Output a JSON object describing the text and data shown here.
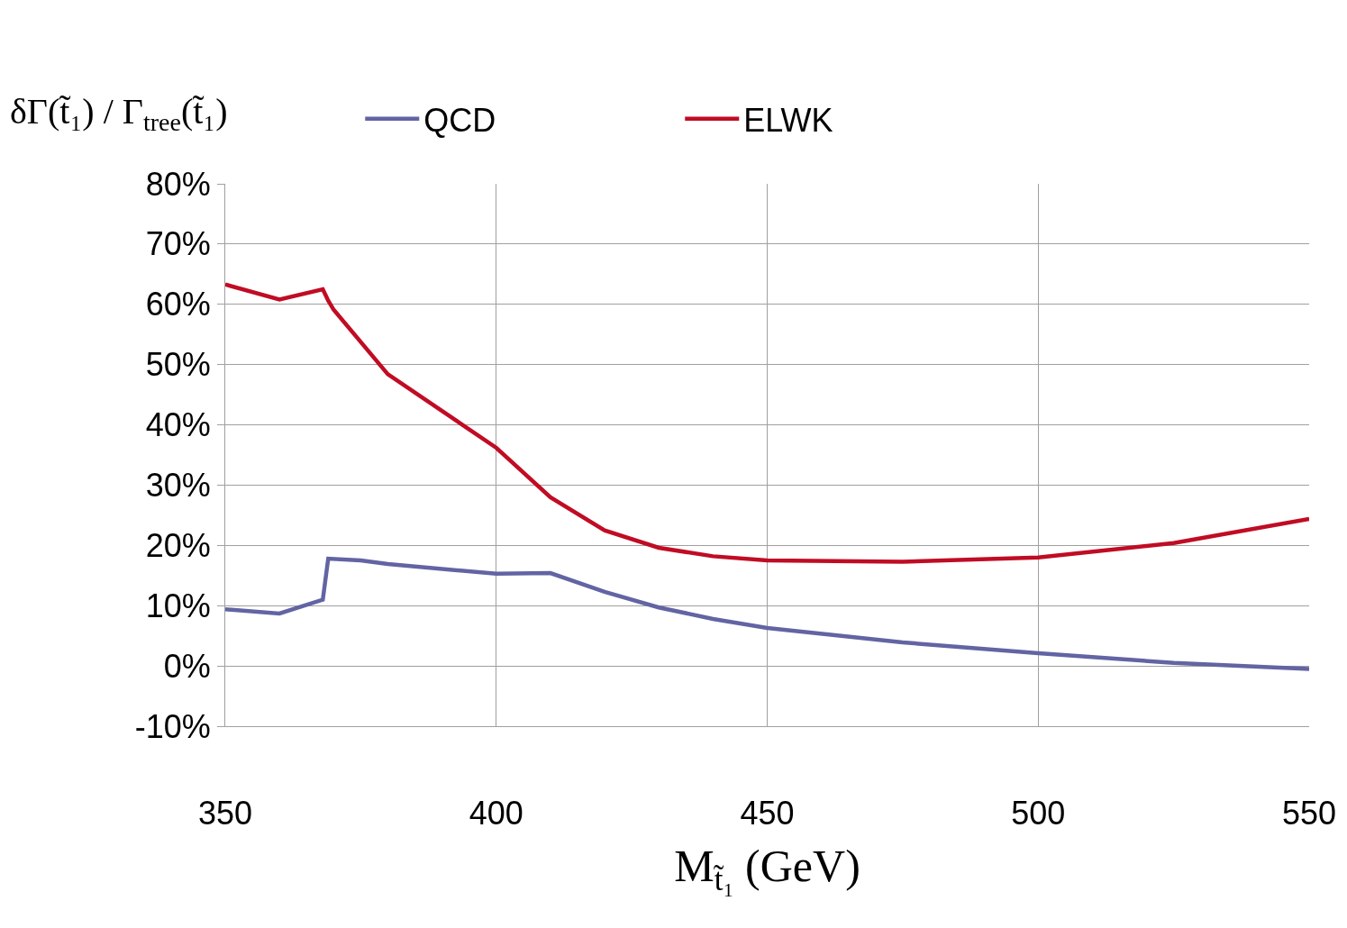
{
  "chart_data": {
    "type": "line",
    "ylabel": "δΓ(t̃₁) / Γ$_{tree}$(t̃₁)",
    "xlabel": "M$_{t̃₁}$ (GeV)",
    "xlim": [
      350,
      550
    ],
    "xticks": [
      350,
      400,
      450,
      500,
      550
    ],
    "ylim": [
      -10,
      80
    ],
    "yticks": [
      {
        "value": -10,
        "label": "-10%"
      },
      {
        "value": 0,
        "label": "0%"
      },
      {
        "value": 10,
        "label": "10%"
      },
      {
        "value": 20,
        "label": "20%"
      },
      {
        "value": 30,
        "label": "30%"
      },
      {
        "value": 40,
        "label": "40%"
      },
      {
        "value": 50,
        "label": "50%"
      },
      {
        "value": 60,
        "label": "60%"
      },
      {
        "value": 70,
        "label": "70%"
      },
      {
        "value": 80,
        "label": "80%"
      }
    ],
    "grid": true,
    "legend": "top",
    "marker": "none",
    "line_style": "solid",
    "series": [
      {
        "name": "QCD",
        "color": "#6264a3",
        "x": [
          350,
          360,
          368,
          369,
          375,
          380,
          400,
          410,
          420,
          430,
          440,
          450,
          475,
          500,
          525,
          550
        ],
        "values": [
          9.4,
          8.7,
          11.0,
          17.8,
          17.5,
          16.9,
          15.3,
          15.4,
          12.3,
          9.7,
          7.8,
          6.3,
          3.9,
          2.1,
          0.5,
          -0.5
        ]
      },
      {
        "name": "ELWK",
        "color": "#c00c24",
        "x": [
          350,
          360,
          368,
          369,
          370,
          380,
          400,
          410,
          420,
          430,
          440,
          450,
          475,
          500,
          525,
          550
        ],
        "values": [
          63.3,
          60.8,
          62.5,
          60.6,
          59.1,
          48.4,
          36.2,
          28.0,
          22.5,
          19.6,
          18.2,
          17.5,
          17.3,
          18.0,
          20.4,
          24.4
        ]
      }
    ]
  }
}
